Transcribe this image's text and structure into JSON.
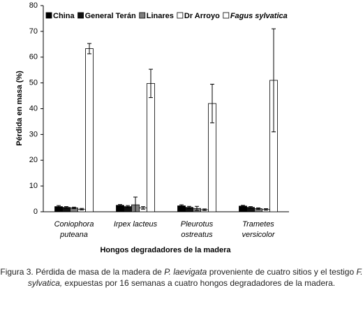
{
  "chart_data": {
    "type": "bar",
    "y_label": "Pérdida en masa (%)",
    "x_label": "Hongos degradadores de la madera",
    "categories": [
      "Coniophora\nputeana",
      "Irpex lacteus",
      "Pleurotus\nostreatus",
      "Trametes\nversicolor"
    ],
    "ylim": [
      0,
      80
    ],
    "yticks": [
      0,
      10,
      20,
      30,
      40,
      50,
      60,
      70,
      80
    ],
    "series": [
      {
        "name": "China",
        "color": "#000000",
        "values": [
          2.0,
          2.5,
          2.3,
          2.2
        ],
        "errors": [
          0.4,
          0.3,
          0.4,
          0.3
        ]
      },
      {
        "name": "General Terán",
        "color": "#111111",
        "values": [
          1.7,
          2.0,
          1.7,
          1.7
        ],
        "errors": [
          0.3,
          0.4,
          0.4,
          0.3
        ]
      },
      {
        "name": "Linares",
        "color": "#7f7f7f",
        "values": [
          1.5,
          2.7,
          1.3,
          1.2
        ],
        "errors": [
          0.3,
          3.0,
          0.8,
          0.3
        ]
      },
      {
        "name": "Dr Arroyo",
        "color": "#ffffff",
        "values": [
          1.0,
          1.5,
          0.8,
          0.9
        ],
        "errors": [
          0.3,
          0.5,
          0.3,
          0.3
        ]
      },
      {
        "name": "Fagus sylvatica",
        "color": "#ffffff",
        "italic": true,
        "values": [
          63.3,
          49.8,
          42.0,
          51.0
        ],
        "errors": [
          2.0,
          5.5,
          7.5,
          20.0
        ]
      }
    ]
  },
  "caption": [
    "Figura 3. Pérdida de masa de la madera de ",
    "P. laevigata",
    " proveniente de cuatro sitios y el testigo ",
    "F. sylvatica,",
    " expuestas por 16 semanas a cuatro hongos degradadores de la madera."
  ]
}
